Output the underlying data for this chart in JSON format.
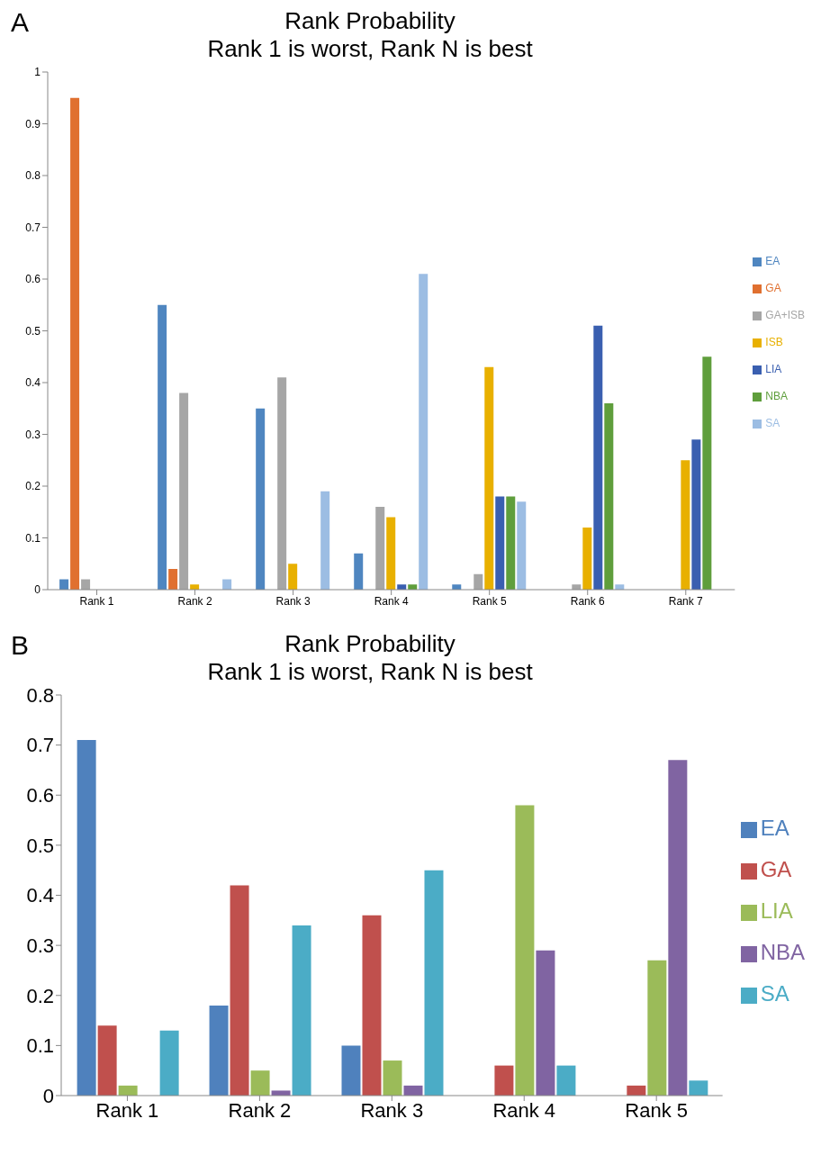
{
  "chart_data": [
    {
      "type": "bar",
      "title": "Rank Probability",
      "subtitle": "Rank 1 is worst, Rank N is best",
      "annotations": [
        "A"
      ],
      "categories": [
        "Rank 1",
        "Rank 2",
        "Rank 3",
        "Rank 4",
        "Rank 5",
        "Rank 6",
        "Rank 7"
      ],
      "series": [
        {
          "name": "EA",
          "color": "#4f86c0",
          "values": [
            0.02,
            0.55,
            0.35,
            0.07,
            0.01,
            0,
            0
          ]
        },
        {
          "name": "GA",
          "color": "#e07030",
          "values": [
            0.95,
            0.04,
            0,
            0,
            0,
            0,
            0
          ]
        },
        {
          "name": "GA+ISB",
          "color": "#a6a6a6",
          "values": [
            0.02,
            0.38,
            0.41,
            0.16,
            0.03,
            0.01,
            0
          ]
        },
        {
          "name": "ISB",
          "color": "#e8b000",
          "values": [
            0,
            0.01,
            0.05,
            0.14,
            0.43,
            0.12,
            0.25
          ]
        },
        {
          "name": "LIA",
          "color": "#3a5fb0",
          "values": [
            0,
            0,
            0,
            0.01,
            0.18,
            0.51,
            0.29
          ]
        },
        {
          "name": "NBA",
          "color": "#5f9e3c",
          "values": [
            0,
            0,
            0,
            0.01,
            0.18,
            0.36,
            0.45
          ]
        },
        {
          "name": "SA",
          "color": "#9cbde3",
          "values": [
            0,
            0.02,
            0.19,
            0.61,
            0.17,
            0.01,
            0
          ]
        }
      ],
      "ylim": [
        0,
        1
      ],
      "yticks": [
        0,
        0.1,
        0.2,
        0.3,
        0.4,
        0.5,
        0.6,
        0.7,
        0.8,
        0.9,
        1
      ],
      "grid": false,
      "legend": "right"
    },
    {
      "type": "bar",
      "title": "Rank Probability",
      "subtitle": "Rank 1 is worst, Rank N is best",
      "annotations": [
        "B"
      ],
      "categories": [
        "Rank 1",
        "Rank 2",
        "Rank 3",
        "Rank 4",
        "Rank 5"
      ],
      "series": [
        {
          "name": "EA",
          "color": "#4f81bd",
          "values": [
            0.71,
            0.18,
            0.1,
            0,
            0
          ]
        },
        {
          "name": "GA",
          "color": "#c0504d",
          "values": [
            0.14,
            0.42,
            0.36,
            0.06,
            0.02
          ]
        },
        {
          "name": "LIA",
          "color": "#9bbb59",
          "values": [
            0.02,
            0.05,
            0.07,
            0.58,
            0.27
          ]
        },
        {
          "name": "NBA",
          "color": "#8064a2",
          "values": [
            0,
            0.01,
            0.02,
            0.29,
            0.67
          ]
        },
        {
          "name": "SA",
          "color": "#4bacc6",
          "values": [
            0.13,
            0.34,
            0.45,
            0.06,
            0.03
          ]
        }
      ],
      "ylim": [
        0,
        0.8
      ],
      "yticks": [
        0,
        0.1,
        0.2,
        0.3,
        0.4,
        0.5,
        0.6,
        0.7,
        0.8
      ],
      "grid": false,
      "legend": "right"
    }
  ]
}
